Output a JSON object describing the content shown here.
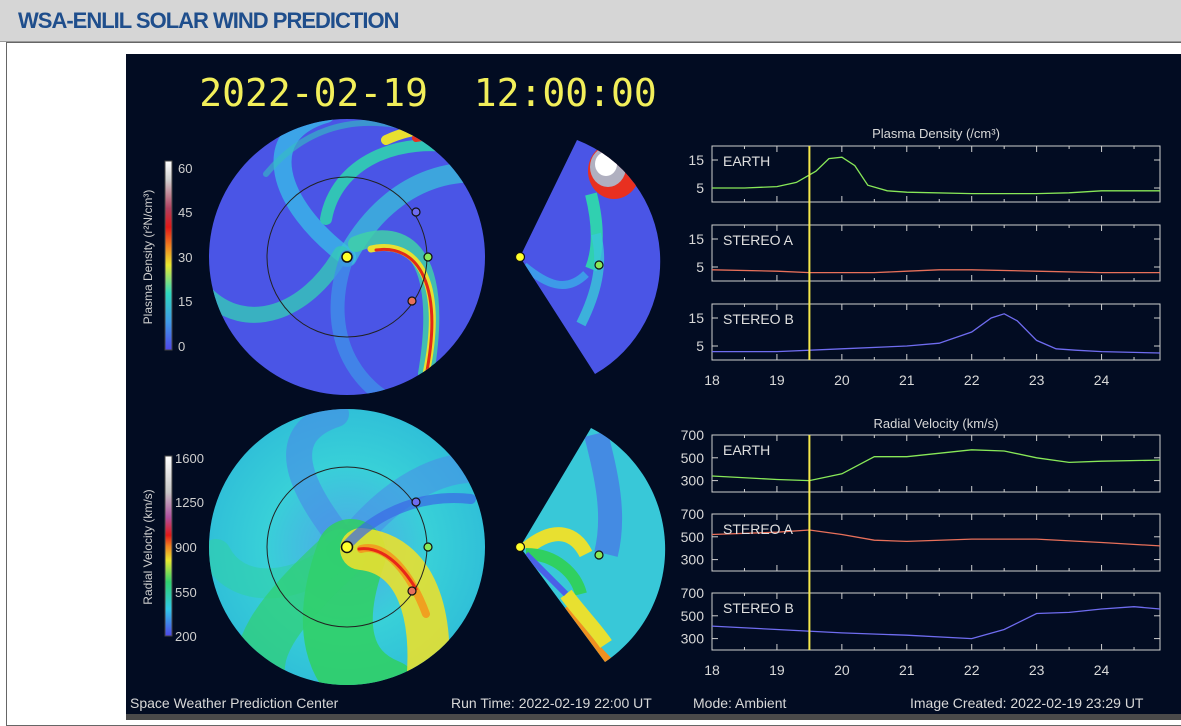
{
  "header": {
    "title": "WSA-ENLIL SOLAR WIND PREDICTION"
  },
  "panel": {
    "timestamp": "2022-02-19  12:00:00",
    "colorbar_density": {
      "label": "Plasma Density (r²N/cm³)",
      "ticks": [
        "60",
        "45",
        "30",
        "15",
        "0"
      ]
    },
    "colorbar_velocity": {
      "label": "Radial Velocity (km/s)",
      "ticks": [
        "1600",
        "1250",
        "900",
        "550",
        "200"
      ]
    },
    "footer": {
      "left": "Space Weather Prediction Center",
      "run_time": "Run Time: 2022-02-19 22:00 UT",
      "mode": "Mode: Ambient",
      "created": "Image Created: 2022-02-19 23:29 UT"
    },
    "colors": {
      "earth": "#88e858",
      "stereo_a": "#e8705a",
      "stereo_b": "#6f6cf0",
      "now_line": "#f5e84a",
      "sun": "#ffff2a"
    }
  },
  "chart_data": [
    {
      "type": "line",
      "title": "Plasma Density (/cm³)",
      "x_ticks": [
        "18",
        "19",
        "20",
        "21",
        "22",
        "23",
        "24"
      ],
      "xlim": [
        18,
        24.9
      ],
      "now_marker_x": 19.5,
      "panels": [
        {
          "name": "EARTH",
          "y_ticks": [
            "15",
            "5"
          ],
          "ylim": [
            0,
            20
          ],
          "x": [
            18,
            18.5,
            19,
            19.3,
            19.6,
            19.8,
            20,
            20.2,
            20.4,
            20.7,
            21,
            22,
            23,
            23.5,
            24,
            24.9
          ],
          "values": [
            5,
            5,
            5.5,
            7,
            11,
            15.5,
            16,
            13,
            6,
            4,
            3.5,
            3,
            3,
            3.3,
            4,
            4
          ]
        },
        {
          "name": "STEREO A",
          "y_ticks": [
            "15",
            "5"
          ],
          "ylim": [
            0,
            20
          ],
          "x": [
            18,
            19,
            19.5,
            20,
            20.5,
            21,
            21.5,
            22,
            23,
            24,
            24.9
          ],
          "values": [
            4,
            3.5,
            3,
            3,
            3,
            3.5,
            4,
            4,
            3.5,
            3,
            3
          ]
        },
        {
          "name": "STEREO B",
          "y_ticks": [
            "15",
            "5"
          ],
          "ylim": [
            0,
            20
          ],
          "x": [
            18,
            19,
            20,
            21,
            21.5,
            22,
            22.3,
            22.5,
            22.7,
            23,
            23.3,
            23.6,
            24,
            24.9
          ],
          "values": [
            3,
            3,
            4,
            5,
            6,
            10,
            15,
            16.5,
            14,
            7,
            4,
            3.5,
            3,
            2.5
          ]
        }
      ]
    },
    {
      "type": "line",
      "title": "Radial Velocity (km/s)",
      "x_ticks": [
        "18",
        "19",
        "20",
        "21",
        "22",
        "23",
        "24"
      ],
      "xlim": [
        18,
        24.9
      ],
      "now_marker_x": 19.5,
      "panels": [
        {
          "name": "EARTH",
          "y_ticks": [
            "700",
            "500",
            "300"
          ],
          "ylim": [
            200,
            700
          ],
          "x": [
            18,
            19,
            19.5,
            20,
            20.5,
            21,
            22,
            22.5,
            23,
            23.5,
            24,
            24.9
          ],
          "values": [
            340,
            310,
            300,
            360,
            510,
            510,
            570,
            560,
            500,
            460,
            470,
            480
          ]
        },
        {
          "name": "STEREO A",
          "y_ticks": [
            "700",
            "500",
            "300"
          ],
          "ylim": [
            200,
            700
          ],
          "x": [
            18,
            19,
            19.5,
            20,
            20.5,
            21,
            22,
            23,
            24,
            24.9
          ],
          "values": [
            520,
            540,
            560,
            520,
            470,
            460,
            480,
            480,
            450,
            420
          ]
        },
        {
          "name": "STEREO B",
          "y_ticks": [
            "700",
            "500",
            "300"
          ],
          "ylim": [
            200,
            700
          ],
          "x": [
            18,
            19,
            20,
            21,
            22,
            22.5,
            23,
            23.5,
            24,
            24.5,
            24.9
          ],
          "values": [
            410,
            380,
            350,
            330,
            300,
            380,
            520,
            530,
            560,
            580,
            560
          ]
        }
      ]
    }
  ]
}
